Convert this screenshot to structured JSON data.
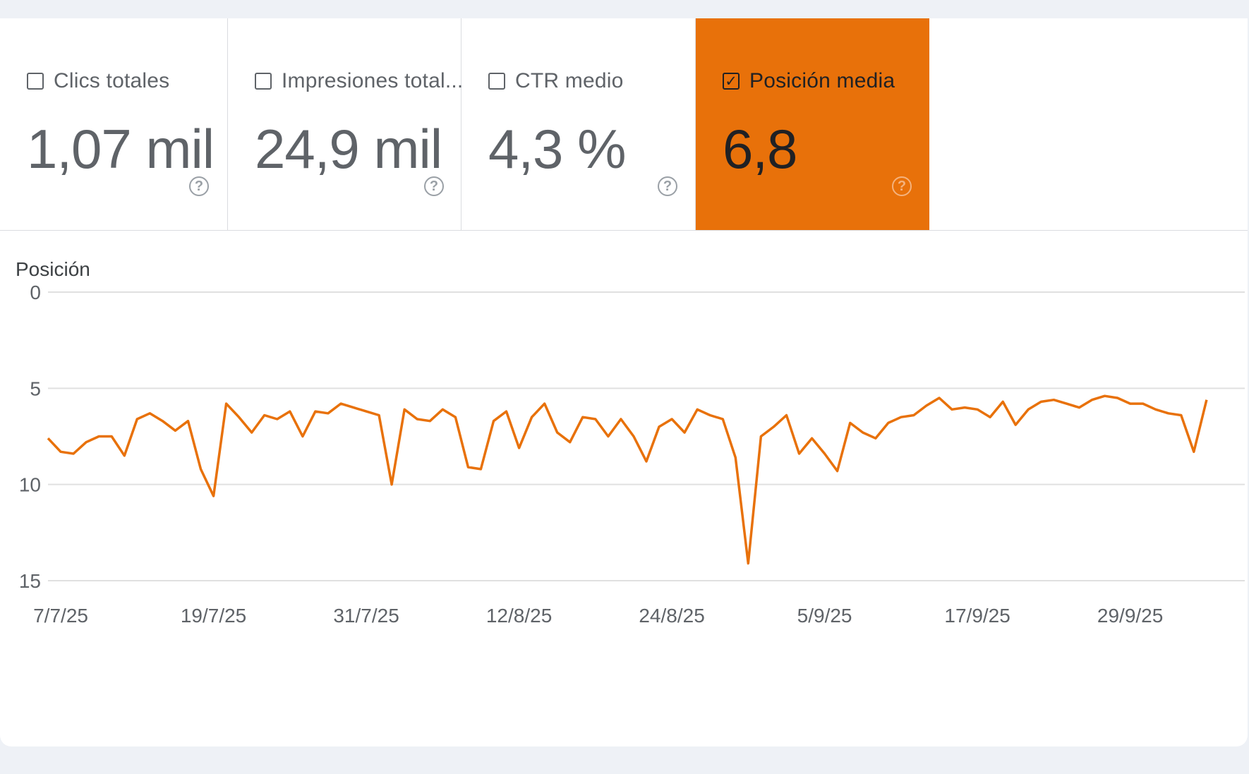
{
  "metrics": [
    {
      "label": "Clics totales",
      "value": "1,07 mil",
      "checked": false
    },
    {
      "label": "Impresiones total...",
      "value": "24,9 mil",
      "checked": false
    },
    {
      "label": "CTR medio",
      "value": "4,3 %",
      "checked": false
    },
    {
      "label": "Posición media",
      "value": "6,8",
      "checked": true
    }
  ],
  "help_glyph": "?",
  "check_glyph": "✓",
  "colors": {
    "accent": "#e8710a",
    "line": "#e8710a",
    "grid": "#e0e0e0",
    "text": "#5f6368"
  },
  "chart_data": {
    "type": "line",
    "ylabel": "Posición",
    "y_reversed": true,
    "ylim": [
      0,
      15
    ],
    "yticks": [
      0,
      5,
      10,
      15
    ],
    "xlim": [
      "2025-07-06",
      "2025-10-08"
    ],
    "xticks": [
      {
        "date": "2025-07-07",
        "label": "7/7/25"
      },
      {
        "date": "2025-07-19",
        "label": "19/7/25"
      },
      {
        "date": "2025-07-31",
        "label": "31/7/25"
      },
      {
        "date": "2025-08-12",
        "label": "12/8/25"
      },
      {
        "date": "2025-08-24",
        "label": "24/8/25"
      },
      {
        "date": "2025-09-05",
        "label": "5/9/25"
      },
      {
        "date": "2025-09-17",
        "label": "17/9/25"
      },
      {
        "date": "2025-09-29",
        "label": "29/9/25"
      }
    ],
    "x_start": "2025-07-06",
    "values": [
      7.6,
      8.3,
      8.4,
      7.8,
      7.5,
      7.5,
      8.5,
      6.6,
      6.3,
      6.7,
      7.2,
      6.7,
      9.2,
      10.6,
      5.8,
      6.5,
      7.3,
      6.4,
      6.6,
      6.2,
      7.5,
      6.2,
      6.3,
      5.8,
      6.0,
      6.2,
      6.4,
      10.0,
      6.1,
      6.6,
      6.7,
      6.1,
      6.5,
      9.1,
      9.2,
      6.7,
      6.2,
      8.1,
      6.5,
      5.8,
      7.3,
      7.8,
      6.5,
      6.6,
      7.5,
      6.6,
      7.5,
      8.8,
      7.0,
      6.6,
      7.3,
      6.1,
      6.4,
      6.6,
      8.6,
      14.1,
      7.5,
      7.0,
      6.4,
      8.4,
      7.6,
      8.4,
      9.3,
      6.8,
      7.3,
      7.6,
      6.8,
      6.5,
      6.4,
      5.9,
      5.5,
      6.1,
      6.0,
      6.1,
      6.5,
      5.7,
      6.9,
      6.1,
      5.7,
      5.6,
      5.8,
      6.0,
      5.6,
      5.4,
      5.5,
      5.8,
      5.8,
      6.1,
      6.3,
      6.4,
      8.3,
      5.6
    ]
  }
}
